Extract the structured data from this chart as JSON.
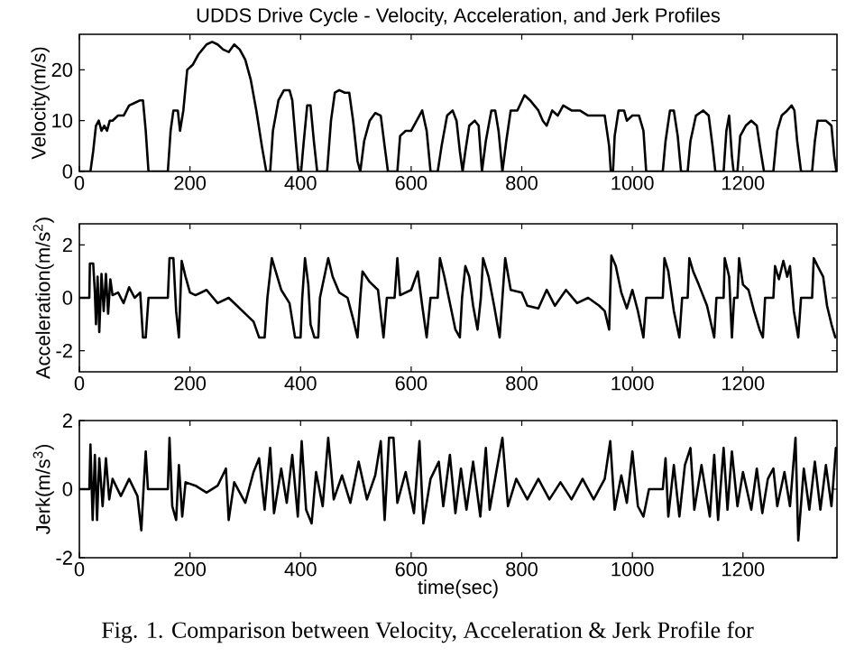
{
  "chart_data": [
    {
      "type": "line",
      "title": "UDDS Drive Cycle - Velocity, Acceleration, and Jerk Profiles",
      "ylabel": "Velocity(m/s)",
      "color": "#000000",
      "xlim": [
        0,
        1370
      ],
      "ylim": [
        0,
        27
      ],
      "xticks": [
        0,
        200,
        400,
        600,
        800,
        1000,
        1200
      ],
      "yticks": [
        0,
        10,
        20
      ],
      "line_style": "solid",
      "marker": "none",
      "x": [
        0,
        20,
        25,
        30,
        35,
        40,
        45,
        50,
        55,
        60,
        70,
        80,
        90,
        100,
        110,
        115,
        120,
        125,
        160,
        165,
        170,
        178,
        182,
        188,
        195,
        205,
        215,
        230,
        240,
        250,
        260,
        270,
        280,
        290,
        300,
        310,
        320,
        330,
        338,
        345,
        350,
        360,
        370,
        380,
        385,
        392,
        396,
        401,
        405,
        412,
        418,
        424,
        430,
        448,
        455,
        462,
        470,
        480,
        488,
        495,
        503,
        508,
        515,
        525,
        535,
        545,
        552,
        558,
        575,
        580,
        590,
        600,
        610,
        620,
        628,
        635,
        648,
        655,
        665,
        675,
        682,
        688,
        693,
        698,
        705,
        715,
        722,
        728,
        735,
        745,
        752,
        758,
        765,
        772,
        780,
        792,
        805,
        815,
        830,
        838,
        845,
        855,
        865,
        875,
        890,
        905,
        920,
        940,
        950,
        958,
        961,
        965,
        968,
        975,
        985,
        990,
        1000,
        1012,
        1020,
        1025,
        1055,
        1060,
        1068,
        1075,
        1082,
        1088,
        1100,
        1105,
        1115,
        1128,
        1138,
        1145,
        1150,
        1165,
        1170,
        1175,
        1180,
        1183,
        1190,
        1195,
        1205,
        1215,
        1225,
        1232,
        1238,
        1255,
        1262,
        1270,
        1280,
        1288,
        1293,
        1298,
        1305,
        1325,
        1330,
        1335,
        1350,
        1360,
        1365,
        1369
      ],
      "values": [
        0,
        0,
        4,
        9,
        10,
        8,
        9,
        8,
        10,
        10,
        11,
        11,
        13,
        13.5,
        14,
        14,
        8,
        0,
        0,
        8,
        12,
        12,
        8,
        12,
        20,
        21,
        23,
        25,
        25.5,
        25,
        24,
        23.5,
        25,
        24,
        22,
        18,
        12,
        5,
        0,
        0,
        8,
        14,
        16,
        16,
        14,
        5,
        0,
        0,
        5,
        13,
        13,
        6,
        0,
        0,
        10,
        15.5,
        16,
        15.5,
        15.5,
        10,
        2,
        0,
        6,
        10,
        11.5,
        11,
        5,
        0,
        0,
        7,
        8,
        8,
        10,
        12,
        8,
        0,
        0,
        5,
        11,
        12,
        10,
        4,
        0,
        4,
        9,
        10,
        9,
        0,
        6,
        12,
        12,
        8,
        0,
        6,
        12,
        12,
        15,
        14,
        12,
        10,
        9,
        12,
        11,
        13,
        12,
        12,
        11,
        11,
        11,
        5,
        0,
        0,
        7,
        12,
        12,
        10,
        11,
        11,
        8,
        0,
        0,
        6,
        12,
        12,
        7,
        0,
        0,
        6,
        11,
        12,
        11,
        5,
        0,
        0,
        8,
        11,
        3,
        0,
        0,
        7,
        9,
        10,
        9,
        4,
        0,
        0,
        8,
        11,
        12,
        13,
        12,
        6,
        0,
        0,
        6,
        10,
        10,
        9,
        3,
        0
      ]
    },
    {
      "type": "line",
      "ylabel": "Acceleration(m/s$^{2}$)",
      "color": "#000000",
      "xlim": [
        0,
        1370
      ],
      "ylim": [
        -2.8,
        2.8
      ],
      "xticks": [
        0,
        200,
        400,
        600,
        800,
        1000,
        1200
      ],
      "yticks": [
        -2,
        0,
        2
      ],
      "line_style": "solid",
      "marker": "none",
      "x": [
        0,
        18,
        19,
        25,
        28,
        30,
        33,
        36,
        40,
        44,
        48,
        52,
        56,
        60,
        70,
        80,
        90,
        100,
        110,
        115,
        120,
        125,
        160,
        163,
        170,
        175,
        180,
        185,
        192,
        200,
        210,
        230,
        250,
        270,
        285,
        300,
        315,
        325,
        335,
        340,
        348,
        355,
        365,
        380,
        390,
        400,
        403,
        408,
        414,
        418,
        425,
        432,
        435,
        450,
        458,
        470,
        485,
        495,
        503,
        508,
        512,
        525,
        540,
        550,
        556,
        570,
        575,
        580,
        600,
        612,
        620,
        628,
        635,
        648,
        652,
        660,
        670,
        680,
        688,
        692,
        698,
        705,
        712,
        720,
        726,
        730,
        740,
        750,
        760,
        765,
        770,
        780,
        800,
        810,
        830,
        845,
        860,
        880,
        900,
        920,
        940,
        950,
        958,
        962,
        970,
        980,
        990,
        1000,
        1010,
        1020,
        1025,
        1055,
        1058,
        1065,
        1075,
        1085,
        1090,
        1100,
        1103,
        1110,
        1120,
        1135,
        1148,
        1152,
        1165,
        1167,
        1175,
        1180,
        1184,
        1190,
        1193,
        1200,
        1210,
        1220,
        1230,
        1236,
        1240,
        1255,
        1258,
        1265,
        1273,
        1280,
        1285,
        1292,
        1300,
        1305,
        1325,
        1328,
        1335,
        1345,
        1352,
        1360,
        1367
      ],
      "values": [
        0,
        0,
        1.3,
        1.3,
        0.2,
        -1,
        0.8,
        -1.3,
        0.9,
        -0.5,
        0.9,
        -0.6,
        0.7,
        0.1,
        0.2,
        -0.2,
        0.4,
        0,
        0.2,
        -1.5,
        -1.5,
        0,
        0,
        1.5,
        1.5,
        -0.5,
        -1.5,
        1.4,
        0.8,
        0.2,
        0.1,
        0.3,
        -0.2,
        0,
        -0.3,
        -0.6,
        -0.9,
        -1.5,
        -1.5,
        0,
        1.5,
        1.0,
        0.3,
        -0.2,
        -1.5,
        -1.5,
        0,
        1.5,
        0.5,
        -1.0,
        -1.5,
        -1.5,
        0,
        1.5,
        0.8,
        0.2,
        0,
        -0.8,
        -1.5,
        0,
        1.0,
        0.6,
        0.3,
        -1.5,
        0,
        0,
        1.5,
        0.1,
        0.3,
        1.0,
        -0.3,
        -1.5,
        0,
        0,
        1.5,
        0.8,
        -0.2,
        -1.2,
        -1.5,
        0,
        1.2,
        0.8,
        -0.3,
        -1.2,
        0,
        1.5,
        0.8,
        -0.3,
        -1.5,
        0,
        1.5,
        0.3,
        0.2,
        -0.3,
        -0.4,
        0.3,
        -0.3,
        0.3,
        -0.2,
        0,
        -0.3,
        -0.5,
        -1.2,
        1.6,
        1.2,
        0.2,
        -0.4,
        0.3,
        -0.5,
        -1.5,
        0,
        0,
        1.5,
        1.0,
        -0.5,
        -1.5,
        0,
        0,
        1.5,
        1.0,
        0.5,
        -0.3,
        -1.5,
        0,
        0,
        1.5,
        0.8,
        -1.5,
        0,
        0,
        1.5,
        0.5,
        0.3,
        -0.5,
        -1.2,
        -1.5,
        0,
        0,
        1.2,
        0.7,
        1.4,
        0.8,
        1.2,
        -0.5,
        -1.5,
        0,
        0,
        1.5,
        1.2,
        0.8,
        -0.3,
        -1.0,
        -1.5
      ]
    },
    {
      "type": "line",
      "ylabel": "Jerk(m/s$^{3}$)",
      "xlabel": "time(sec)",
      "color": "#000000",
      "xlim": [
        0,
        1370
      ],
      "ylim": [
        -2,
        2
      ],
      "xticks": [
        0,
        200,
        400,
        600,
        800,
        1000,
        1200
      ],
      "yticks": [
        -2,
        0,
        2
      ],
      "line_style": "solid",
      "marker": "none",
      "annotations": [
        "Fig. 1.  Comparison between Velocity, Acceleration & Jerk Profile for"
      ],
      "x": [
        0,
        18,
        20,
        24,
        28,
        32,
        36,
        42,
        48,
        54,
        60,
        75,
        90,
        105,
        112,
        116,
        120,
        124,
        160,
        163,
        168,
        175,
        180,
        186,
        192,
        210,
        230,
        250,
        265,
        270,
        280,
        300,
        315,
        325,
        335,
        345,
        352,
        365,
        375,
        385,
        395,
        402,
        410,
        420,
        428,
        440,
        450,
        460,
        475,
        490,
        505,
        520,
        535,
        545,
        552,
        560,
        568,
        575,
        590,
        605,
        615,
        622,
        635,
        650,
        658,
        670,
        680,
        690,
        700,
        712,
        725,
        735,
        742,
        755,
        765,
        775,
        790,
        810,
        830,
        850,
        870,
        890,
        910,
        930,
        950,
        960,
        968,
        980,
        990,
        1000,
        1010,
        1020,
        1030,
        1055,
        1060,
        1065,
        1075,
        1085,
        1095,
        1105,
        1112,
        1125,
        1140,
        1148,
        1155,
        1165,
        1172,
        1180,
        1190,
        1200,
        1215,
        1225,
        1235,
        1245,
        1255,
        1262,
        1275,
        1285,
        1295,
        1300,
        1310,
        1320,
        1330,
        1340,
        1350,
        1360,
        1368
      ],
      "values": [
        0,
        0,
        1.3,
        -0.9,
        1.0,
        -0.9,
        0.9,
        -0.5,
        0.9,
        -0.3,
        0.3,
        -0.2,
        0.3,
        -0.2,
        -1.2,
        0,
        1.1,
        0,
        0,
        1.5,
        -0.5,
        -0.9,
        0.7,
        -0.8,
        0.2,
        0.1,
        -0.1,
        0.1,
        0.6,
        -0.9,
        0.2,
        -0.4,
        0.5,
        0.9,
        -0.6,
        1.2,
        -0.7,
        0.6,
        -0.4,
        1.0,
        -0.8,
        1.4,
        -0.6,
        -1.0,
        0.5,
        -0.5,
        1.5,
        -0.3,
        0.4,
        -0.4,
        0.8,
        -0.3,
        0.4,
        1.4,
        -0.9,
        1.5,
        1.5,
        -0.4,
        0.5,
        -0.7,
        1.4,
        -1.0,
        0.3,
        0.8,
        -0.5,
        1.0,
        -0.7,
        0.6,
        -0.6,
        0.8,
        -0.8,
        1.2,
        -0.6,
        0.6,
        1.5,
        -0.5,
        0.3,
        -0.3,
        0.3,
        -0.3,
        0.2,
        -0.3,
        0.3,
        -0.3,
        0.3,
        1.4,
        -0.6,
        0.4,
        -0.4,
        1.1,
        -0.5,
        -0.8,
        0,
        0,
        0.9,
        -0.8,
        0.7,
        -0.8,
        0.7,
        1.2,
        -0.6,
        0.7,
        -0.8,
        1.0,
        -0.9,
        1.2,
        -0.6,
        1.1,
        -0.5,
        0.5,
        -0.6,
        0.6,
        -0.7,
        0.3,
        0.6,
        -0.5,
        0.5,
        -0.5,
        1.5,
        -1.5,
        0.6,
        -0.6,
        0.8,
        -0.6,
        0.7,
        -0.5,
        1.2
      ]
    }
  ]
}
